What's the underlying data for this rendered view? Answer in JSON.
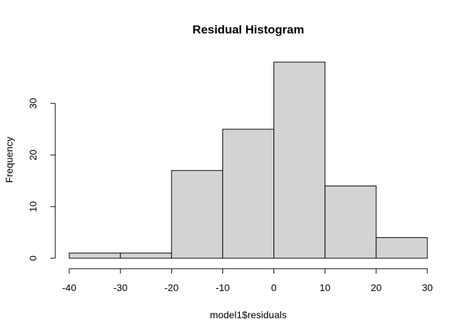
{
  "chart_data": {
    "type": "bar",
    "title": "Residual Histogram",
    "xlabel": "model1$residuals",
    "ylabel": "Frequency",
    "bins": [
      {
        "start": -40,
        "end": -30,
        "count": 1
      },
      {
        "start": -30,
        "end": -20,
        "count": 1
      },
      {
        "start": -20,
        "end": -10,
        "count": 17
      },
      {
        "start": -10,
        "end": 0,
        "count": 25
      },
      {
        "start": 0,
        "end": 10,
        "count": 38
      },
      {
        "start": 10,
        "end": 20,
        "count": 14
      },
      {
        "start": 20,
        "end": 30,
        "count": 4
      }
    ],
    "xlim": [
      -40,
      30
    ],
    "ylim": [
      0,
      38
    ],
    "xticks": [
      -40,
      -30,
      -20,
      -10,
      0,
      10,
      20,
      30
    ],
    "yticks": [
      0,
      10,
      20,
      30
    ],
    "grid": false,
    "bar_color": "#d3d3d3",
    "edge_color": "#000000"
  }
}
